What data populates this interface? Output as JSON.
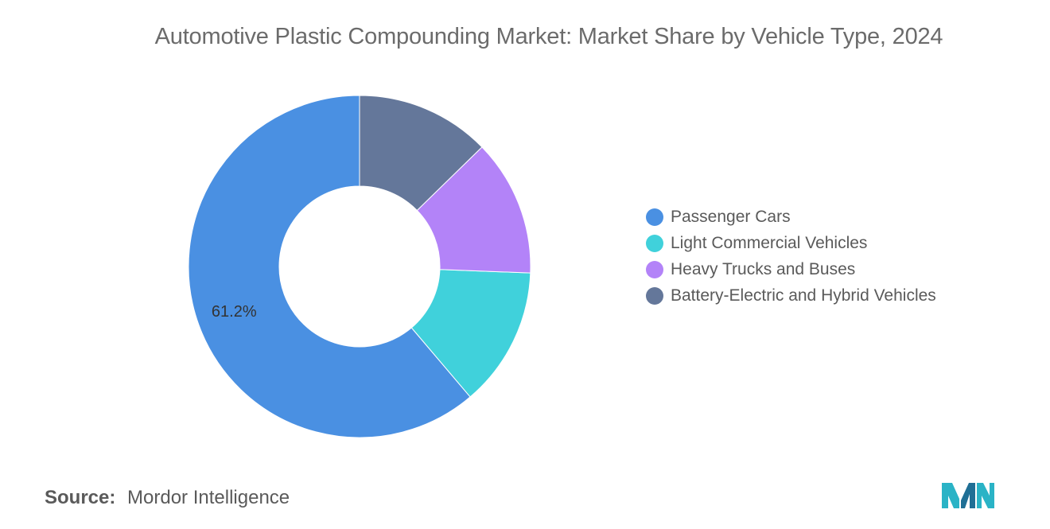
{
  "chart_data": {
    "type": "pie",
    "title": "Automotive Plastic Compounding Market: Market Share by Vehicle Type, 2024",
    "categories": [
      "Passenger Cars",
      "Light Commercial Vehicles",
      "Heavy Trucks and Buses",
      "Battery-Electric and Hybrid Vehicles"
    ],
    "values": [
      61.2,
      13.2,
      12.9,
      12.7
    ],
    "colors": [
      "#4a90e2",
      "#40d1db",
      "#b383f8",
      "#64779a"
    ],
    "data_labels": [
      "61.2%",
      "",
      "",
      ""
    ],
    "donut": true,
    "legend_position": "right"
  },
  "source": {
    "label": "Source:",
    "value": "Mordor Intelligence"
  },
  "logo": {
    "icon": "mordor-intelligence-logo-icon",
    "colors": [
      "#2ab3c6",
      "#1f6f95"
    ]
  }
}
